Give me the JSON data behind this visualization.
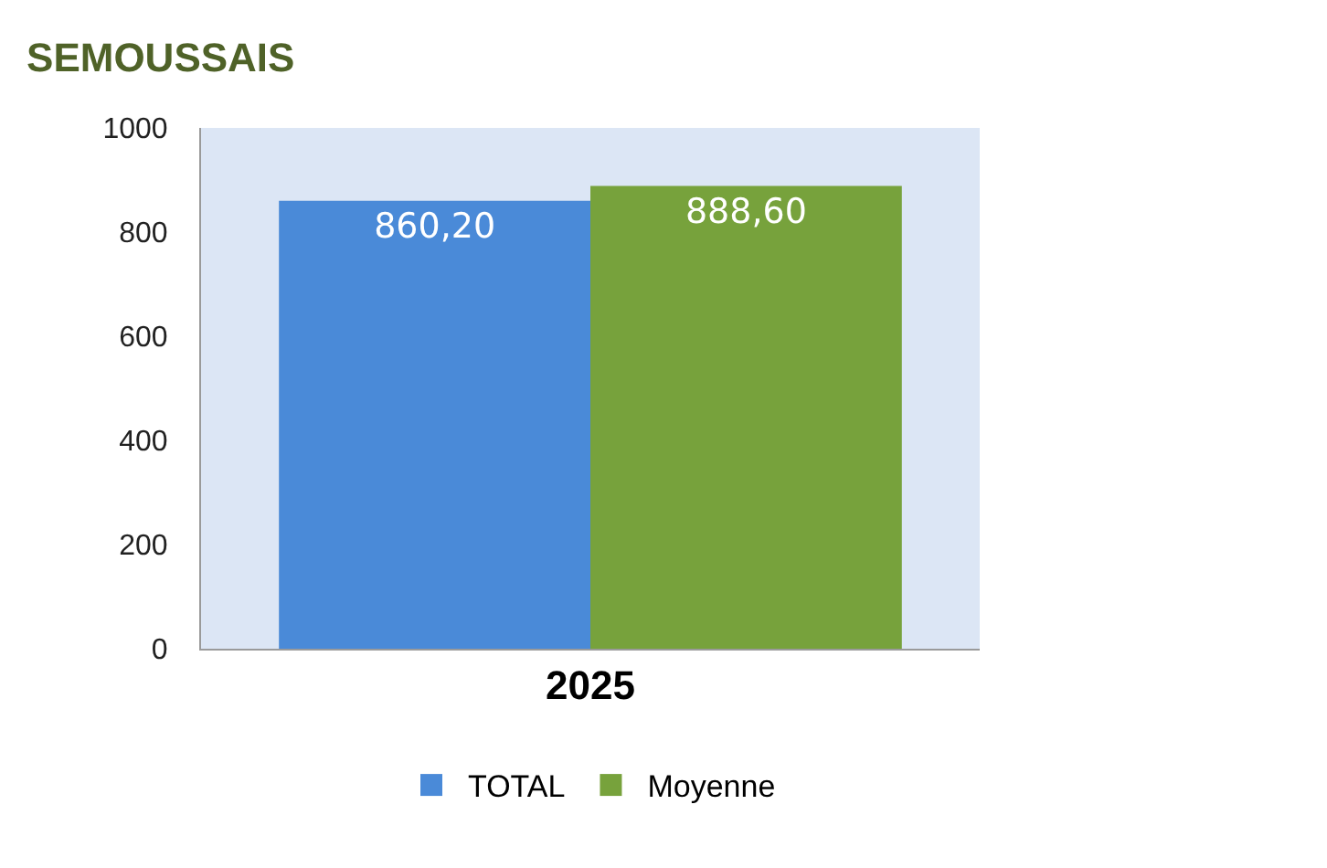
{
  "chart_data": {
    "type": "bar",
    "title": "SEMOUSSAIS",
    "categories": [
      "2025"
    ],
    "series": [
      {
        "name": "TOTAL",
        "color": "#4a8ad8",
        "values": [
          860.2
        ],
        "value_labels": [
          "860,20"
        ]
      },
      {
        "name": "Moyenne",
        "color": "#77a23c",
        "values": [
          888.6
        ],
        "value_labels": [
          "888,60"
        ]
      }
    ],
    "ylim": [
      0,
      1000
    ],
    "yticks": [
      0,
      200,
      400,
      600,
      800,
      1000
    ],
    "grid": false,
    "legend": "bottom"
  }
}
